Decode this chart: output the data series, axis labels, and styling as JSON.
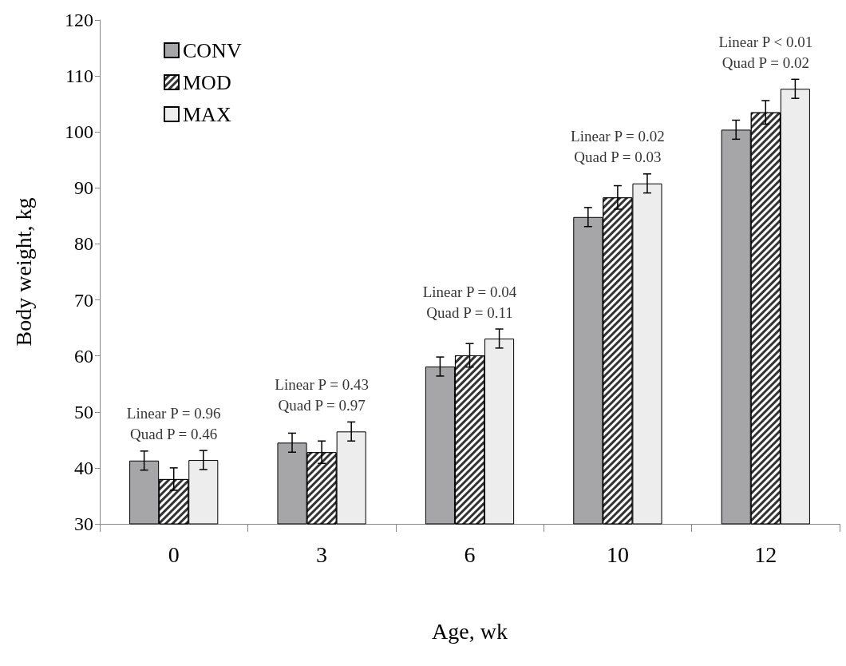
{
  "chart_data": {
    "type": "bar",
    "xlabel": "Age, wk",
    "ylabel": "Body weight, kg",
    "categories": [
      "0",
      "3",
      "6",
      "10",
      "12"
    ],
    "series": [
      {
        "name": "CONV",
        "color": "#a6a6a8",
        "values": [
          41.3,
          44.5,
          58.1,
          84.8,
          100.4
        ],
        "errors": [
          1.7,
          1.7,
          1.7,
          1.7,
          1.7
        ]
      },
      {
        "name": "MOD",
        "color": "#333333",
        "values": [
          38.0,
          42.8,
          60.1,
          88.3,
          103.5
        ],
        "errors": [
          2.0,
          2.0,
          2.1,
          2.1,
          2.1
        ]
      },
      {
        "name": "MAX",
        "color": "#ededed",
        "values": [
          41.4,
          46.5,
          63.1,
          90.8,
          107.7
        ],
        "errors": [
          1.7,
          1.7,
          1.7,
          1.7,
          1.7
        ]
      }
    ],
    "ylim": [
      30,
      120
    ],
    "yticks": [
      30,
      40,
      50,
      60,
      70,
      80,
      90,
      100,
      110,
      120
    ],
    "grid": false,
    "legend": "top left",
    "annotations": [
      "Linear P = 0.96\nQuad P = 0.46",
      "Linear P = 0.43\nQuad P = 0.97",
      "Linear P = 0.04\nQuad P = 0.11",
      "Linear P = 0.02\nQuad P = 0.03",
      "Linear P < 0.01\nQuad P = 0.02"
    ]
  }
}
